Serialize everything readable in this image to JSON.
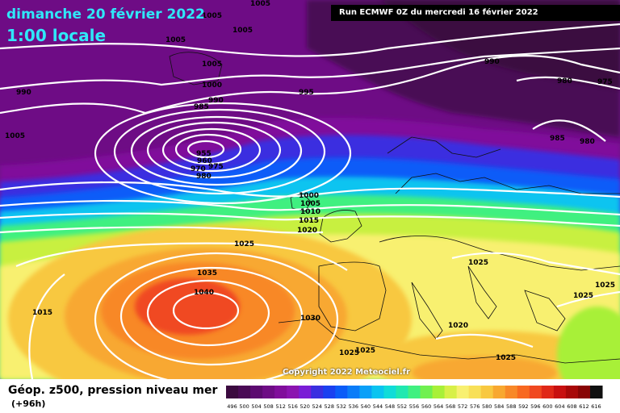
{
  "header": {
    "date": "dimanche 20 février 2022",
    "time": "1:00 locale",
    "run": "Run ECMWF 0Z du mercredi 16 février 2022"
  },
  "copyright": "Copyright 2022 Meteociel.fr",
  "legend": {
    "title": "Géop. z500, pression niveau mer",
    "subtitle": "(+96h)",
    "scale_values": [
      "496",
      "500",
      "504",
      "508",
      "512",
      "516",
      "520",
      "524",
      "528",
      "532",
      "536",
      "540",
      "544",
      "548",
      "552",
      "556",
      "560",
      "564",
      "568",
      "572",
      "576",
      "580",
      "584",
      "588",
      "592",
      "596",
      "600",
      "604",
      "608",
      "612",
      "616"
    ],
    "scale_colors": [
      "#3b0a3f",
      "#4a0a55",
      "#5c0a70",
      "#6e0c85",
      "#800e9b",
      "#8b14b0",
      "#7a1dd6",
      "#3a2fe0",
      "#1a40f0",
      "#0a5cf8",
      "#0a7cf8",
      "#0aa0f8",
      "#0ac4f0",
      "#10dcd8",
      "#20e8b0",
      "#40f080",
      "#70f050",
      "#a8f038",
      "#d8f048",
      "#f8f070",
      "#f8e058",
      "#f8c840",
      "#f8a830",
      "#f88828",
      "#f86820",
      "#f04820",
      "#e02818",
      "#c81010",
      "#a80808",
      "#880404",
      "#101010"
    ]
  },
  "isobar_labels": [
    {
      "text": "1005"
    },
    {
      "text": "1005"
    },
    {
      "text": "1005"
    },
    {
      "text": "1005"
    },
    {
      "text": "1005"
    },
    {
      "text": "1000"
    },
    {
      "text": "995"
    },
    {
      "text": "990"
    },
    {
      "text": "990"
    },
    {
      "text": "985"
    },
    {
      "text": "990"
    },
    {
      "text": "980"
    },
    {
      "text": "975"
    },
    {
      "text": "985"
    },
    {
      "text": "980"
    },
    {
      "text": "955"
    },
    {
      "text": "960"
    },
    {
      "text": "970"
    },
    {
      "text": "975"
    },
    {
      "text": "980"
    },
    {
      "text": "1000"
    },
    {
      "text": "1005"
    },
    {
      "text": "1010"
    },
    {
      "text": "1015"
    },
    {
      "text": "1020"
    },
    {
      "text": "1025"
    },
    {
      "text": "1035"
    },
    {
      "text": "1040"
    },
    {
      "text": "1015"
    },
    {
      "text": "1030"
    },
    {
      "text": "1025"
    },
    {
      "text": "1025"
    },
    {
      "text": "1025"
    },
    {
      "text": "1020"
    },
    {
      "text": "1025"
    },
    {
      "text": "1025"
    },
    {
      "text": "1025"
    },
    {
      "text": "995"
    },
    {
      "text": "1005"
    },
    {
      "text": "1005"
    }
  ]
}
